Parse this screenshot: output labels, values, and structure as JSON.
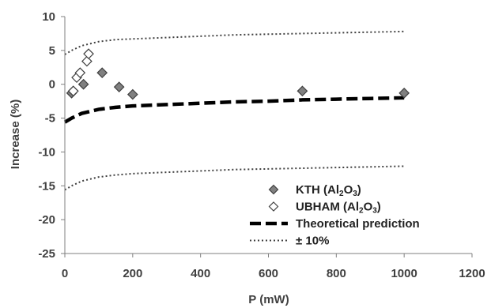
{
  "chart_data": {
    "type": "scatter",
    "xlabel": "P (mW)",
    "ylabel": "Increase (%)",
    "xlim": [
      0,
      1200
    ],
    "ylim": [
      -25,
      10
    ],
    "xticks": [
      0,
      200,
      400,
      600,
      800,
      1000,
      1200
    ],
    "yticks": [
      -25,
      -20,
      -15,
      -10,
      -5,
      0,
      5,
      10
    ],
    "grid": false,
    "legend_position": "lower-right",
    "series": [
      {
        "name": "KTH (Al2O3)",
        "label_main": "KTH (Al",
        "label_sub": "2",
        "label_mid": "O",
        "label_sub2": "3",
        "label_end": ")",
        "kind": "marker",
        "marker": "diamond",
        "fill": "#808080",
        "stroke": "#404040",
        "x": [
          20,
          25,
          55,
          110,
          160,
          200,
          700,
          1000
        ],
        "y": [
          -1.3,
          -1.0,
          0.0,
          1.7,
          -0.4,
          -1.5,
          -1.0,
          -1.3
        ]
      },
      {
        "name": "UBHAM (Al2O3)",
        "label_main": "UBHAM (Al",
        "label_sub": "2",
        "label_mid": "O",
        "label_sub2": "3",
        "label_end": ")",
        "kind": "marker",
        "marker": "diamond",
        "fill": "#ffffff",
        "stroke": "#404040",
        "x": [
          25,
          35,
          45,
          65,
          70
        ],
        "y": [
          -1.0,
          1.0,
          1.7,
          3.4,
          4.5
        ]
      },
      {
        "name": "Theoretical prediction",
        "kind": "line",
        "dash": "dashed",
        "color": "#000000",
        "x": [
          0,
          20,
          50,
          100,
          150,
          200,
          300,
          400,
          500,
          600,
          700,
          800,
          900,
          1000
        ],
        "y": [
          -5.6,
          -5.0,
          -4.3,
          -3.7,
          -3.4,
          -3.2,
          -3.0,
          -2.8,
          -2.6,
          -2.5,
          -2.3,
          -2.2,
          -2.1,
          -2.0
        ]
      },
      {
        "name": "± 10%",
        "kind": "line",
        "dash": "dotted",
        "color": "#404040",
        "x": [
          0,
          20,
          50,
          100,
          150,
          200,
          300,
          400,
          500,
          600,
          700,
          800,
          900,
          1000
        ],
        "y": [
          4.4,
          5.0,
          5.7,
          6.3,
          6.6,
          6.7,
          6.9,
          7.1,
          7.3,
          7.4,
          7.5,
          7.6,
          7.7,
          7.8
        ]
      },
      {
        "name": "",
        "kind": "line",
        "dash": "dotted",
        "color": "#404040",
        "legend": false,
        "x": [
          0,
          20,
          50,
          100,
          150,
          200,
          300,
          400,
          500,
          600,
          700,
          800,
          900,
          1000
        ],
        "y": [
          -15.6,
          -15.0,
          -14.3,
          -13.7,
          -13.4,
          -13.2,
          -13.0,
          -12.8,
          -12.6,
          -12.5,
          -12.4,
          -12.3,
          -12.2,
          -12.1
        ]
      }
    ]
  }
}
